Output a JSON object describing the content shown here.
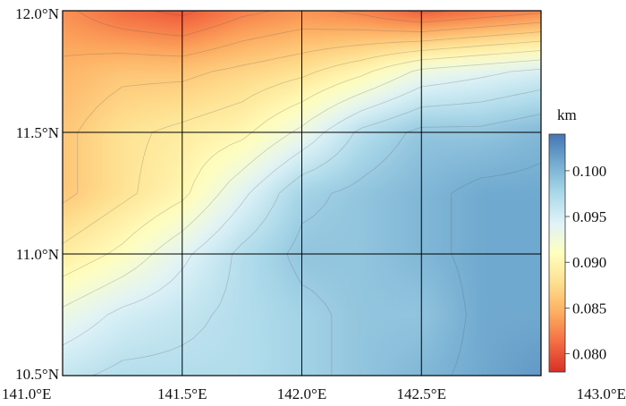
{
  "chart_data": {
    "type": "heatmap",
    "title": "",
    "subtitle": "",
    "xlabel": "",
    "ylabel": "",
    "xlim": [
      141.0,
      143.0
    ],
    "ylim": [
      10.5,
      12.0
    ],
    "x_ticks": [
      141.0,
      141.5,
      142.0,
      142.5,
      143.0
    ],
    "x_tick_labels": [
      "141.0°E",
      "141.5°E",
      "142.0°E",
      "142.5°E",
      "143.0°E"
    ],
    "y_ticks": [
      10.5,
      11.0,
      11.5,
      12.0
    ],
    "y_tick_labels": [
      "10.5°N",
      "11.0°N",
      "11.5°N",
      "12.0°N"
    ],
    "grid": true,
    "colorbar": {
      "label": "km",
      "range": [
        0.078,
        0.104
      ],
      "ticks": [
        0.08,
        0.085,
        0.09,
        0.095,
        0.1
      ],
      "tick_labels": [
        "0.080",
        "0.085",
        "0.090",
        "0.095",
        "0.100"
      ],
      "colormap": "RdYlBu",
      "colors": [
        "#d73027",
        "#f46d43",
        "#fdae61",
        "#fee090",
        "#ffffbf",
        "#e0f3f8",
        "#abd9e9",
        "#74add1",
        "#4575b4"
      ]
    },
    "field": {
      "description_units": "km",
      "lon": [
        141.0,
        141.25,
        141.5,
        141.75,
        142.0,
        142.25,
        142.5,
        142.75,
        143.0
      ],
      "lat": [
        12.0,
        11.75,
        11.5,
        11.25,
        11.0,
        10.75,
        10.5
      ],
      "values": [
        [
          0.083,
          0.081,
          0.08,
          0.082,
          0.083,
          0.082,
          0.08,
          0.081,
          0.082
        ],
        [
          0.085,
          0.086,
          0.086,
          0.087,
          0.088,
          0.09,
          0.093,
          0.094,
          0.095
        ],
        [
          0.086,
          0.088,
          0.089,
          0.09,
          0.093,
          0.097,
          0.099,
          0.099,
          0.1
        ],
        [
          0.086,
          0.088,
          0.09,
          0.094,
          0.098,
          0.099,
          0.1,
          0.101,
          0.101
        ],
        [
          0.089,
          0.091,
          0.094,
          0.097,
          0.099,
          0.099,
          0.1,
          0.101,
          0.101
        ],
        [
          0.093,
          0.095,
          0.096,
          0.097,
          0.098,
          0.099,
          0.099,
          0.101,
          0.101
        ],
        [
          0.096,
          0.097,
          0.097,
          0.097,
          0.098,
          0.099,
          0.1,
          0.101,
          0.102
        ]
      ]
    }
  }
}
